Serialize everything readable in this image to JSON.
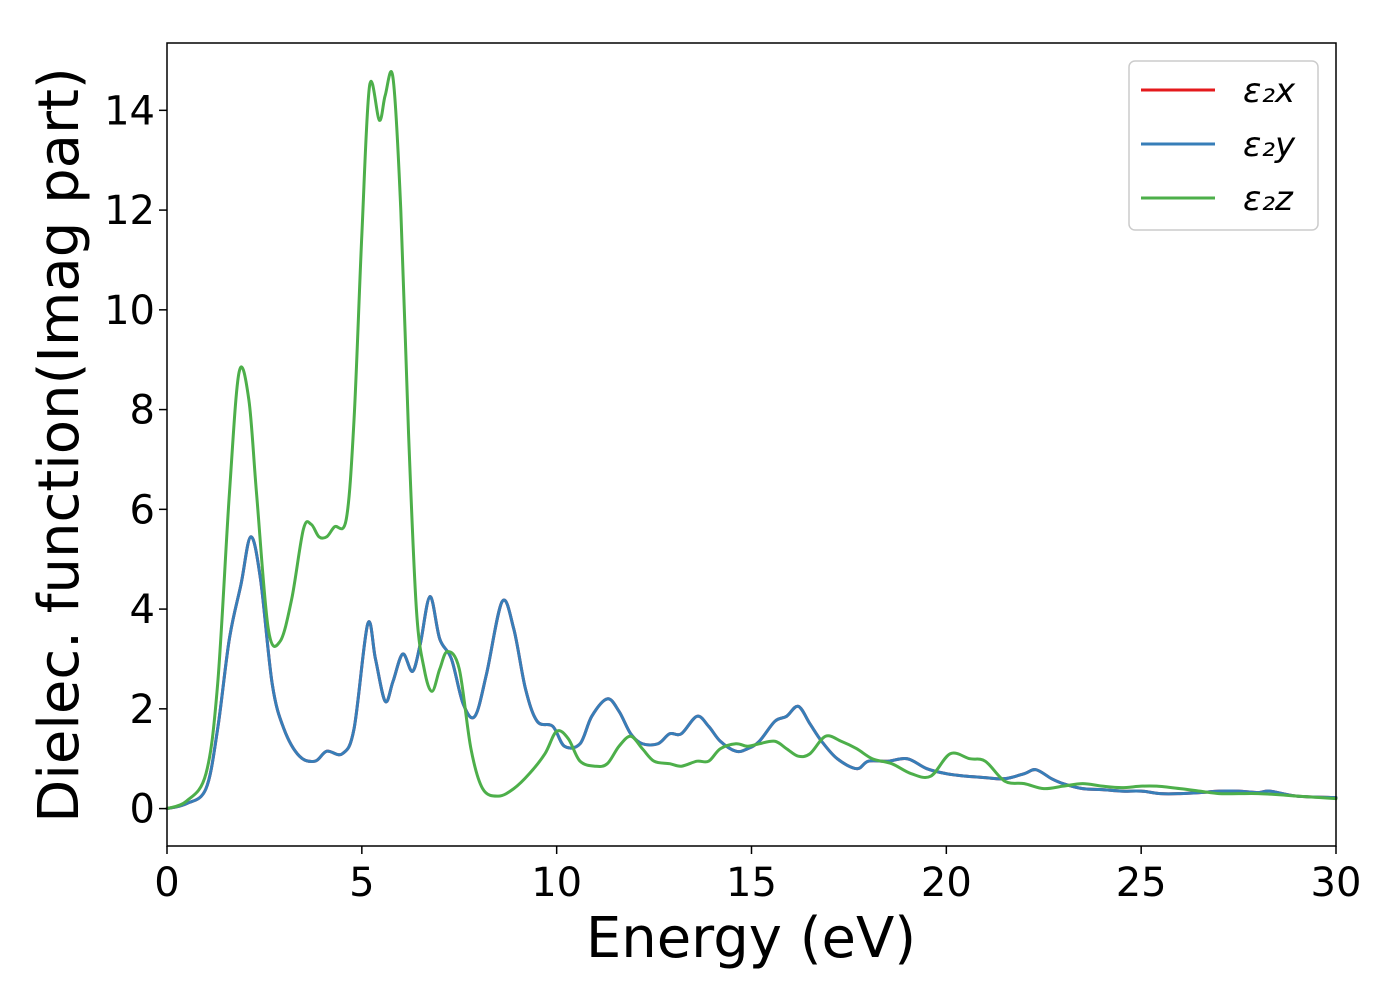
{
  "chart_data": {
    "type": "line",
    "xlabel": "Energy (eV)",
    "ylabel": "Dielec. function(Imag part)",
    "xlim": [
      0,
      30
    ],
    "ylim": [
      -0.75,
      15.35
    ],
    "xticks": [
      0,
      5,
      10,
      15,
      20,
      25,
      30
    ],
    "yticks": [
      0,
      2,
      4,
      6,
      8,
      10,
      12,
      14
    ],
    "grid": false,
    "legend_position": "top-right",
    "series": [
      {
        "name": "ε₂x",
        "color": "#e41a1c",
        "x": [
          0,
          0.5,
          1.0,
          1.3,
          1.6,
          1.9,
          2.15,
          2.4,
          2.7,
          3.0,
          3.4,
          3.8,
          4.1,
          4.5,
          4.8,
          5.15,
          5.35,
          5.6,
          5.8,
          6.05,
          6.3,
          6.5,
          6.75,
          7.0,
          7.3,
          7.6,
          7.9,
          8.2,
          8.6,
          8.9,
          9.2,
          9.5,
          9.9,
          10.2,
          10.6,
          10.9,
          11.3,
          11.6,
          11.9,
          12.2,
          12.6,
          12.9,
          13.2,
          13.6,
          13.9,
          14.2,
          14.6,
          14.9,
          15.2,
          15.6,
          15.9,
          16.2,
          16.5,
          16.8,
          17.2,
          17.7,
          18.0,
          18.5,
          19.0,
          19.5,
          20.0,
          20.5,
          21.0,
          21.5,
          22.0,
          22.3,
          22.7,
          23.0,
          23.5,
          24.0,
          24.5,
          25.0,
          25.5,
          26.0,
          26.5,
          27.0,
          27.5,
          28.0,
          28.3,
          29.0,
          30.0
        ],
        "values": [
          0,
          0.1,
          0.4,
          1.6,
          3.4,
          4.5,
          5.45,
          4.6,
          2.5,
          1.6,
          1.05,
          0.95,
          1.15,
          1.1,
          1.6,
          3.7,
          3.0,
          2.15,
          2.55,
          3.1,
          2.75,
          3.3,
          4.25,
          3.4,
          3.0,
          2.1,
          1.85,
          2.7,
          4.15,
          3.6,
          2.4,
          1.75,
          1.65,
          1.25,
          1.3,
          1.85,
          2.2,
          1.95,
          1.5,
          1.3,
          1.3,
          1.5,
          1.5,
          1.85,
          1.65,
          1.35,
          1.15,
          1.2,
          1.35,
          1.75,
          1.85,
          2.05,
          1.7,
          1.35,
          1.0,
          0.8,
          0.95,
          0.95,
          1.0,
          0.8,
          0.7,
          0.65,
          0.62,
          0.6,
          0.7,
          0.78,
          0.6,
          0.5,
          0.4,
          0.38,
          0.35,
          0.35,
          0.3,
          0.3,
          0.32,
          0.35,
          0.35,
          0.32,
          0.35,
          0.25,
          0.22
        ]
      },
      {
        "name": "ε₂y",
        "color": "#377eb8",
        "x": [
          0,
          0.5,
          1.0,
          1.3,
          1.6,
          1.9,
          2.15,
          2.4,
          2.7,
          3.0,
          3.4,
          3.8,
          4.1,
          4.5,
          4.8,
          5.15,
          5.35,
          5.6,
          5.8,
          6.05,
          6.3,
          6.5,
          6.75,
          7.0,
          7.3,
          7.6,
          7.9,
          8.2,
          8.6,
          8.9,
          9.2,
          9.5,
          9.9,
          10.2,
          10.6,
          10.9,
          11.3,
          11.6,
          11.9,
          12.2,
          12.6,
          12.9,
          13.2,
          13.6,
          13.9,
          14.2,
          14.6,
          14.9,
          15.2,
          15.6,
          15.9,
          16.2,
          16.5,
          16.8,
          17.2,
          17.7,
          18.0,
          18.5,
          19.0,
          19.5,
          20.0,
          20.5,
          21.0,
          21.5,
          22.0,
          22.3,
          22.7,
          23.0,
          23.5,
          24.0,
          24.5,
          25.0,
          25.5,
          26.0,
          26.5,
          27.0,
          27.5,
          28.0,
          28.3,
          29.0,
          30.0
        ],
        "values": [
          0,
          0.1,
          0.4,
          1.6,
          3.4,
          4.5,
          5.45,
          4.6,
          2.5,
          1.6,
          1.05,
          0.95,
          1.15,
          1.1,
          1.6,
          3.7,
          3.0,
          2.15,
          2.55,
          3.1,
          2.75,
          3.3,
          4.25,
          3.4,
          3.0,
          2.1,
          1.85,
          2.7,
          4.15,
          3.6,
          2.4,
          1.75,
          1.65,
          1.25,
          1.3,
          1.85,
          2.2,
          1.95,
          1.5,
          1.3,
          1.3,
          1.5,
          1.5,
          1.85,
          1.65,
          1.35,
          1.15,
          1.2,
          1.35,
          1.75,
          1.85,
          2.05,
          1.7,
          1.35,
          1.0,
          0.8,
          0.95,
          0.95,
          1.0,
          0.8,
          0.7,
          0.65,
          0.62,
          0.6,
          0.7,
          0.78,
          0.6,
          0.5,
          0.4,
          0.38,
          0.35,
          0.35,
          0.3,
          0.3,
          0.32,
          0.35,
          0.35,
          0.32,
          0.35,
          0.25,
          0.22
        ]
      },
      {
        "name": "ε₂z",
        "color": "#4daf4a",
        "x": [
          0,
          0.5,
          1.0,
          1.3,
          1.6,
          1.85,
          2.1,
          2.3,
          2.6,
          2.9,
          3.2,
          3.5,
          3.7,
          3.9,
          4.1,
          4.3,
          4.6,
          4.8,
          5.0,
          5.2,
          5.45,
          5.6,
          5.8,
          6.0,
          6.2,
          6.4,
          6.6,
          6.8,
          7.0,
          7.2,
          7.5,
          7.8,
          8.1,
          8.5,
          8.9,
          9.3,
          9.7,
          10.0,
          10.3,
          10.6,
          11.0,
          11.3,
          11.6,
          11.9,
          12.2,
          12.5,
          12.9,
          13.2,
          13.6,
          13.9,
          14.2,
          14.6,
          14.9,
          15.2,
          15.6,
          15.9,
          16.2,
          16.5,
          16.9,
          17.3,
          17.7,
          18.1,
          18.6,
          19.1,
          19.6,
          20.1,
          20.6,
          21.0,
          21.5,
          22.0,
          22.5,
          23.0,
          23.5,
          24.0,
          24.5,
          25.0,
          25.4,
          26.0,
          26.5,
          27.0,
          27.5,
          28.0,
          28.5,
          29.0,
          30.0
        ],
        "values": [
          0,
          0.15,
          0.7,
          2.5,
          6.3,
          8.75,
          8.2,
          6.3,
          3.6,
          3.35,
          4.2,
          5.6,
          5.7,
          5.45,
          5.45,
          5.65,
          5.8,
          7.8,
          11.5,
          14.5,
          13.8,
          14.3,
          14.65,
          12.0,
          7.5,
          4.0,
          2.8,
          2.35,
          2.8,
          3.15,
          2.8,
          1.2,
          0.4,
          0.25,
          0.4,
          0.7,
          1.1,
          1.55,
          1.4,
          0.95,
          0.85,
          0.9,
          1.25,
          1.45,
          1.2,
          0.95,
          0.9,
          0.85,
          0.95,
          0.95,
          1.2,
          1.3,
          1.25,
          1.3,
          1.35,
          1.2,
          1.05,
          1.1,
          1.45,
          1.35,
          1.2,
          1.0,
          0.9,
          0.7,
          0.65,
          1.1,
          1.0,
          0.95,
          0.55,
          0.5,
          0.4,
          0.45,
          0.5,
          0.45,
          0.42,
          0.45,
          0.45,
          0.4,
          0.35,
          0.3,
          0.3,
          0.3,
          0.28,
          0.25,
          0.2
        ]
      }
    ]
  }
}
